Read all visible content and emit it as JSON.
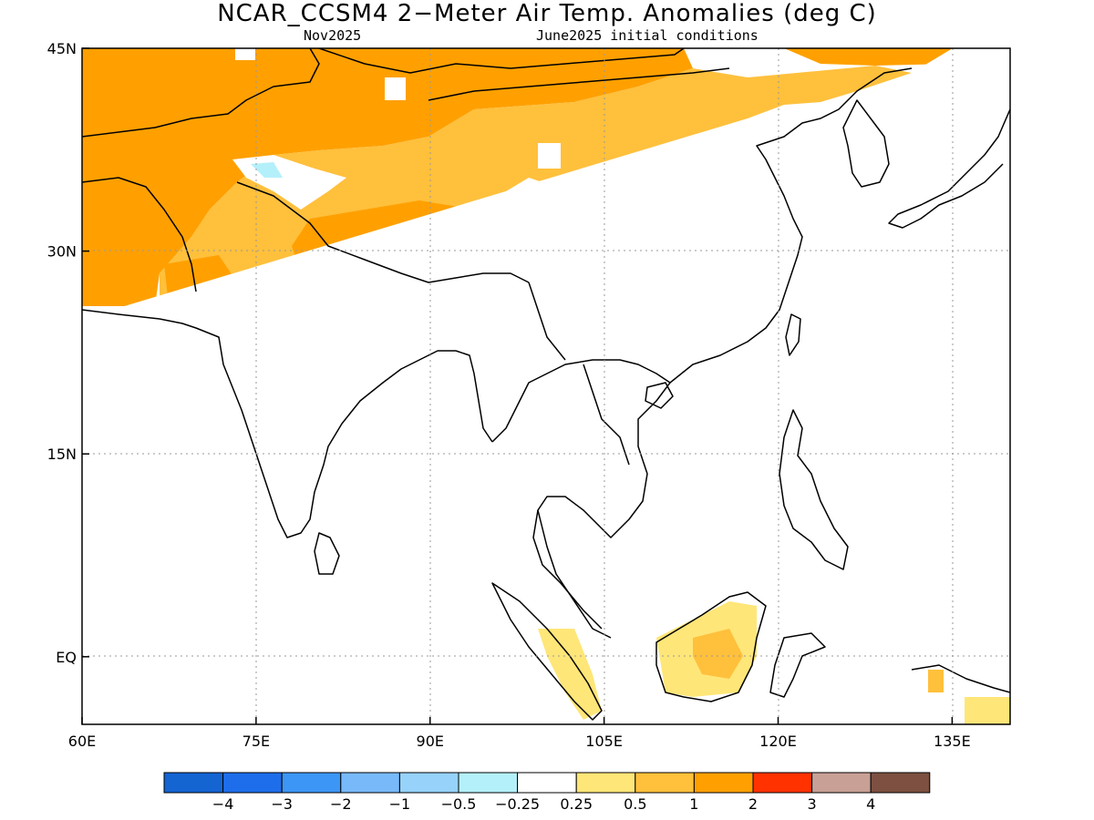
{
  "title": "NCAR_CCSM4 2−Meter Air Temp. Anomalies (deg C)",
  "subtitle_left": "Nov2025",
  "subtitle_right": "June2025 initial conditions",
  "map": {
    "lon_labels": [
      "60E",
      "75E",
      "90E",
      "105E",
      "120E",
      "135E"
    ],
    "lat_labels": [
      "45N",
      "30N",
      "15N",
      "EQ"
    ],
    "lon_values": [
      60,
      75,
      90,
      105,
      120,
      135
    ],
    "lat_values": [
      45,
      30,
      15,
      0
    ],
    "extent": {
      "lon_min": 60,
      "lon_max": 140,
      "lat_min": -5,
      "lat_max": 45
    },
    "grid": true
  },
  "colorbar": {
    "colors": [
      "#1464d2",
      "#1e6eeb",
      "#3c96f5",
      "#78b9fa",
      "#96d2fa",
      "#b4f0fa",
      "#ffffff",
      "#ffe678",
      "#ffc03c",
      "#ffa000",
      "#ff3200",
      "#c8a096",
      "#7d5041"
    ],
    "labels": [
      "−4",
      "−3",
      "−2",
      "−1",
      "−0.5",
      "−0.25",
      "0.25",
      "0.5",
      "1",
      "2",
      "3",
      "4"
    ]
  },
  "colors": {
    "coast": "#000000",
    "grid": "#999999"
  }
}
